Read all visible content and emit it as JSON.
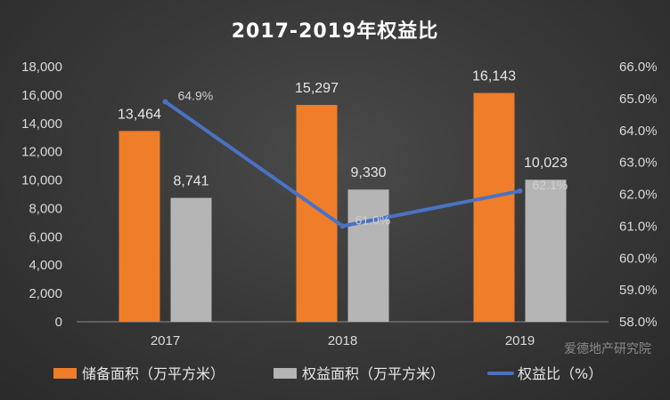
{
  "chart_data": {
    "type": "bar",
    "title": "2017-2019年权益比",
    "categories": [
      "2017",
      "2018",
      "2019"
    ],
    "series": [
      {
        "name": "储备面积（万平方米）",
        "type": "bar",
        "axis": "left",
        "color": "#f07d2a",
        "values": [
          13464,
          15297,
          16143
        ],
        "labels": [
          "13,464",
          "15,297",
          "16,143"
        ]
      },
      {
        "name": "权益面积（万平方米）",
        "type": "bar",
        "axis": "left",
        "color": "#b5b5b5",
        "values": [
          8741,
          9330,
          10023
        ],
        "labels": [
          "8,741",
          "9,330",
          "10,023"
        ]
      },
      {
        "name": "权益比（%）",
        "type": "line",
        "axis": "right",
        "color": "#4a72c4",
        "values": [
          64.9,
          61.0,
          62.1
        ],
        "labels": [
          "64.9%",
          "61.0%",
          "62.1%"
        ]
      }
    ],
    "y_left": {
      "min": 0,
      "max": 18000,
      "ticks": [
        0,
        2000,
        4000,
        6000,
        8000,
        10000,
        12000,
        14000,
        16000,
        18000
      ],
      "tick_labels": [
        "0",
        "2,000",
        "4,000",
        "6,000",
        "8,000",
        "10,000",
        "12,000",
        "14,000",
        "16,000",
        "18,000"
      ]
    },
    "y_right": {
      "min": 58.0,
      "max": 66.0,
      "ticks": [
        58,
        59,
        60,
        61,
        62,
        63,
        64,
        65,
        66
      ],
      "tick_labels": [
        "58.0%",
        "59.0%",
        "60.0%",
        "61.0%",
        "62.0%",
        "63.0%",
        "64.0%",
        "65.0%",
        "66.0%"
      ]
    },
    "grid": false,
    "legend_position": "bottom"
  },
  "watermark": "爱德地产研究院"
}
